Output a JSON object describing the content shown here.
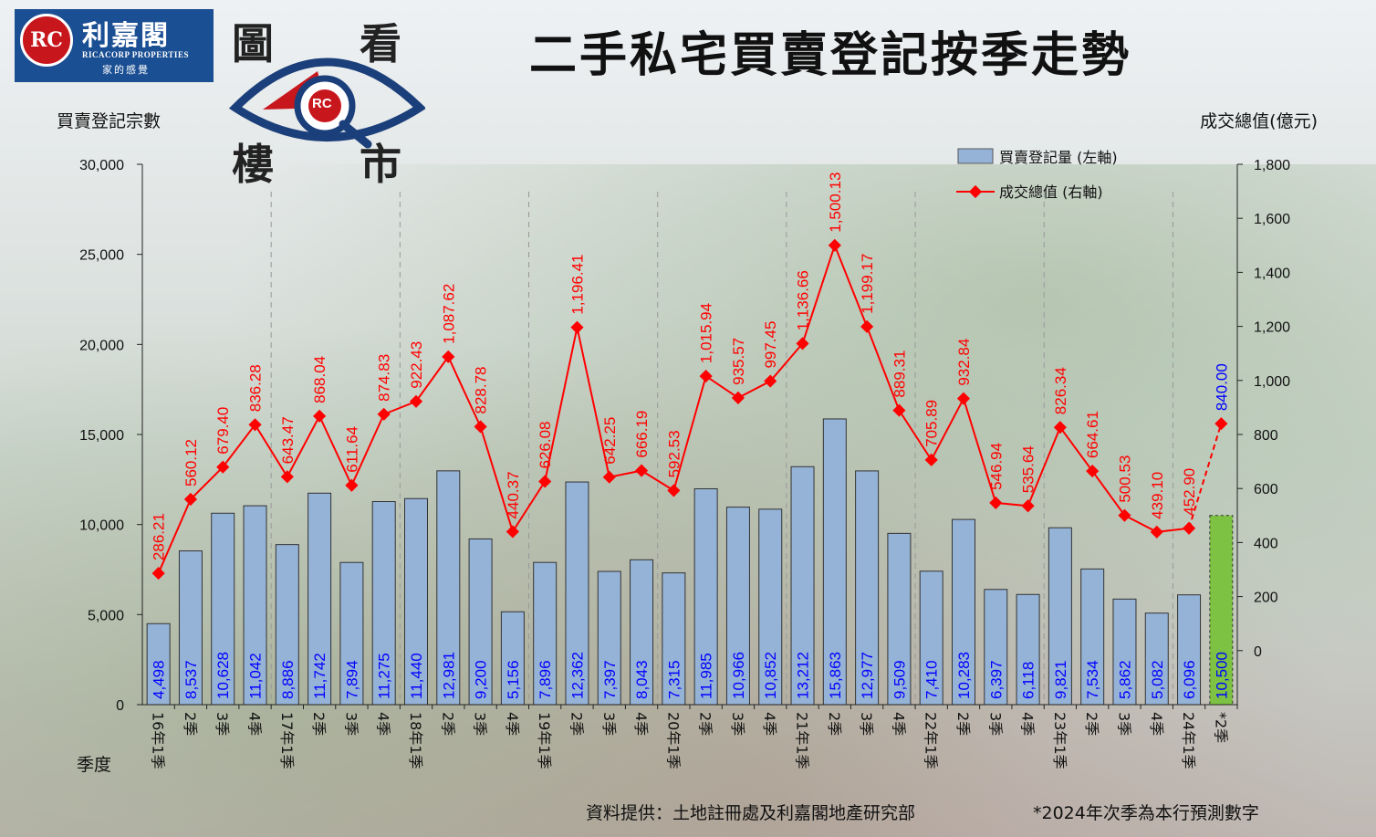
{
  "title": "二手私宅買賣登記按季走勢",
  "logo": {
    "seal": "RC",
    "name": "利嘉閣",
    "english": "RICACORP PROPERTIES",
    "tagline": "家的感覺"
  },
  "eye_logo": {
    "chars": [
      "圖",
      "看",
      "樓",
      "市"
    ],
    "seal": "RC"
  },
  "left_axis_title": "買賣登記宗數",
  "right_axis_title": "成交總值(億元)",
  "x_axis_title": "季度",
  "source": "資料提供：土地註冊處及利嘉閣地產研究部",
  "footnote": "*2024年次季為本行預測數字",
  "colors": {
    "bar": "#95b3d7",
    "bar_forecast": "#7dc242",
    "line": "#ff0000",
    "bar_label": "#0000ff",
    "line_label": "#ff0000",
    "line_label_forecast": "#0000ff"
  },
  "chart_data": {
    "type": "bar",
    "categories": [
      "16年1季",
      "2季",
      "3季",
      "4季",
      "17年1季",
      "2季",
      "3季",
      "4季",
      "18年1季",
      "2季",
      "3季",
      "4季",
      "19年1季",
      "2季",
      "3季",
      "4季",
      "20年1季",
      "2季",
      "3季",
      "4季",
      "21年1季",
      "2季",
      "3季",
      "4季",
      "22年1季",
      "2季",
      "3季",
      "4季",
      "23年1季",
      "2季",
      "3季",
      "4季",
      "24年1季",
      "*2季"
    ],
    "series": [
      {
        "name": "買賣登記量 (左軸)",
        "type": "bar",
        "axis": "left",
        "values": [
          4498,
          8537,
          10628,
          11042,
          8886,
          11742,
          7894,
          11275,
          11440,
          12981,
          9200,
          5156,
          7896,
          12362,
          7397,
          8043,
          7315,
          11985,
          10966,
          10852,
          13212,
          15863,
          12977,
          9509,
          7410,
          10283,
          6397,
          6118,
          9821,
          7534,
          5862,
          5082,
          6096,
          10500
        ],
        "labels": [
          "4,498",
          "8,537",
          "10,628",
          "11,042",
          "8,886",
          "11,742",
          "7,894",
          "11,275",
          "11,440",
          "12,981",
          "9,200",
          "5,156",
          "7,896",
          "12,362",
          "7,397",
          "8,043",
          "7,315",
          "11,985",
          "10,966",
          "10,852",
          "13,212",
          "15,863",
          "12,977",
          "9,509",
          "7,410",
          "10,283",
          "6,397",
          "6,118",
          "9,821",
          "7,534",
          "5,862",
          "5,082",
          "6,096",
          "10,500"
        ]
      },
      {
        "name": "成交總值 (右軸)",
        "type": "line",
        "axis": "right",
        "values": [
          286.21,
          560.12,
          679.4,
          836.28,
          643.47,
          868.04,
          611.64,
          874.83,
          922.43,
          1087.62,
          828.78,
          440.37,
          626.08,
          1196.41,
          642.25,
          666.19,
          592.53,
          1015.94,
          935.57,
          997.45,
          1136.66,
          1500.13,
          1199.17,
          889.31,
          705.89,
          932.84,
          546.94,
          535.64,
          826.34,
          664.61,
          500.53,
          439.1,
          452.9,
          840.0
        ],
        "labels": [
          "286.21",
          "560.12",
          "679.40",
          "836.28",
          "643.47",
          "868.04",
          "611.64",
          "874.83",
          "922.43",
          "1,087.62",
          "828.78",
          "440.37",
          "626.08",
          "1,196.41",
          "642.25",
          "666.19",
          "592.53",
          "1,015.94",
          "935.57",
          "997.45",
          "1,136.66",
          "1,500.13",
          "1,199.17",
          "889.31",
          "705.89",
          "932.84",
          "546.94",
          "535.64",
          "826.34",
          "664.61",
          "500.53",
          "439.10",
          "452.90",
          "840.00"
        ]
      }
    ],
    "forecast_index": 33,
    "ylim_left": [
      0,
      30000
    ],
    "ylim_right": [
      -200,
      1800
    ],
    "left_ticks": [
      0,
      5000,
      10000,
      15000,
      20000,
      25000,
      30000
    ],
    "left_tick_labels": [
      "0",
      "5,000",
      "10,000",
      "15,000",
      "20,000",
      "25,000",
      "30,000"
    ],
    "right_ticks": [
      0,
      200,
      400,
      600,
      800,
      1000,
      1200,
      1400,
      1600,
      1800
    ],
    "right_tick_labels": [
      "0",
      "200",
      "400",
      "600",
      "800",
      "1,000",
      "1,200",
      "1,400",
      "1,600",
      "1,800"
    ],
    "year_dividers_before": [
      4,
      8,
      12,
      16,
      20,
      24,
      28,
      32
    ],
    "legend_placement": "top-right"
  }
}
